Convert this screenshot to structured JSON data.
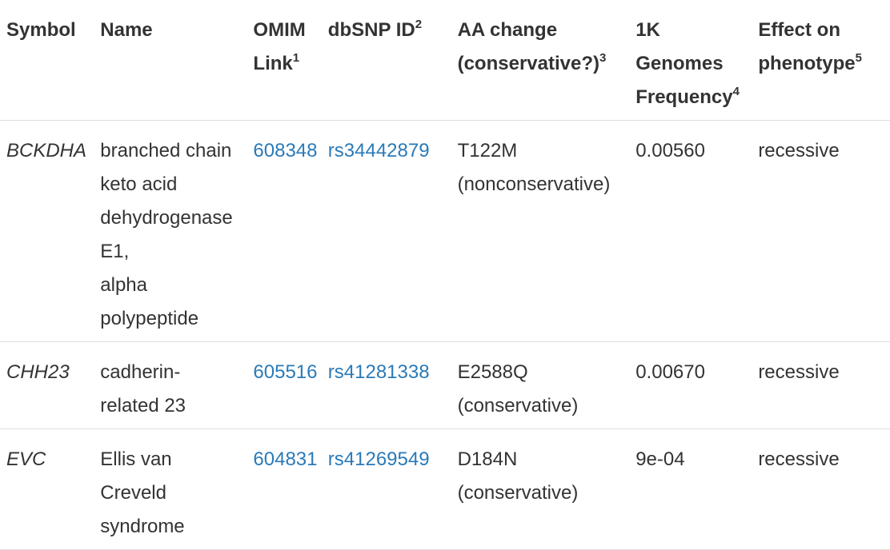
{
  "headers": {
    "symbol": "Symbol",
    "name": "Name",
    "omim": "OMIM Link",
    "omim_sup": "1",
    "dbsnp": "dbSNP ID",
    "dbsnp_sup": "2",
    "aa": "AA change (conservative?)",
    "aa_sup": "3",
    "freq": "1K Genomes Frequency",
    "freq_sup": "4",
    "effect": "Effect on phenotype",
    "effect_sup": "5"
  },
  "rows": [
    {
      "symbol": "BCKDHA",
      "name_lines": [
        "branched chain",
        "keto acid",
        "dehydrogenase",
        "E1,",
        "alpha",
        "polypeptide"
      ],
      "omim": "608348",
      "dbsnp": "rs34442879",
      "aa_change": "T122M",
      "aa_type": "(nonconservative)",
      "frequency": "0.00560",
      "effect": "recessive"
    },
    {
      "symbol": "CHH23",
      "name_lines": [
        "cadherin-",
        "related 23"
      ],
      "omim": "605516",
      "dbsnp": "rs41281338",
      "aa_change": "E2588Q",
      "aa_type": "(conservative)",
      "frequency": "0.00670",
      "effect": "recessive"
    },
    {
      "symbol": "EVC",
      "name_lines": [
        "Ellis van",
        "Creveld",
        "syndrome"
      ],
      "omim": "604831",
      "dbsnp": "rs41269549",
      "aa_change": "D184N",
      "aa_type": "(conservative)",
      "frequency": "9e-04",
      "effect": "recessive"
    }
  ],
  "colors": {
    "text": "#333333",
    "link": "#2a7ab8",
    "border": "#dddddd"
  }
}
